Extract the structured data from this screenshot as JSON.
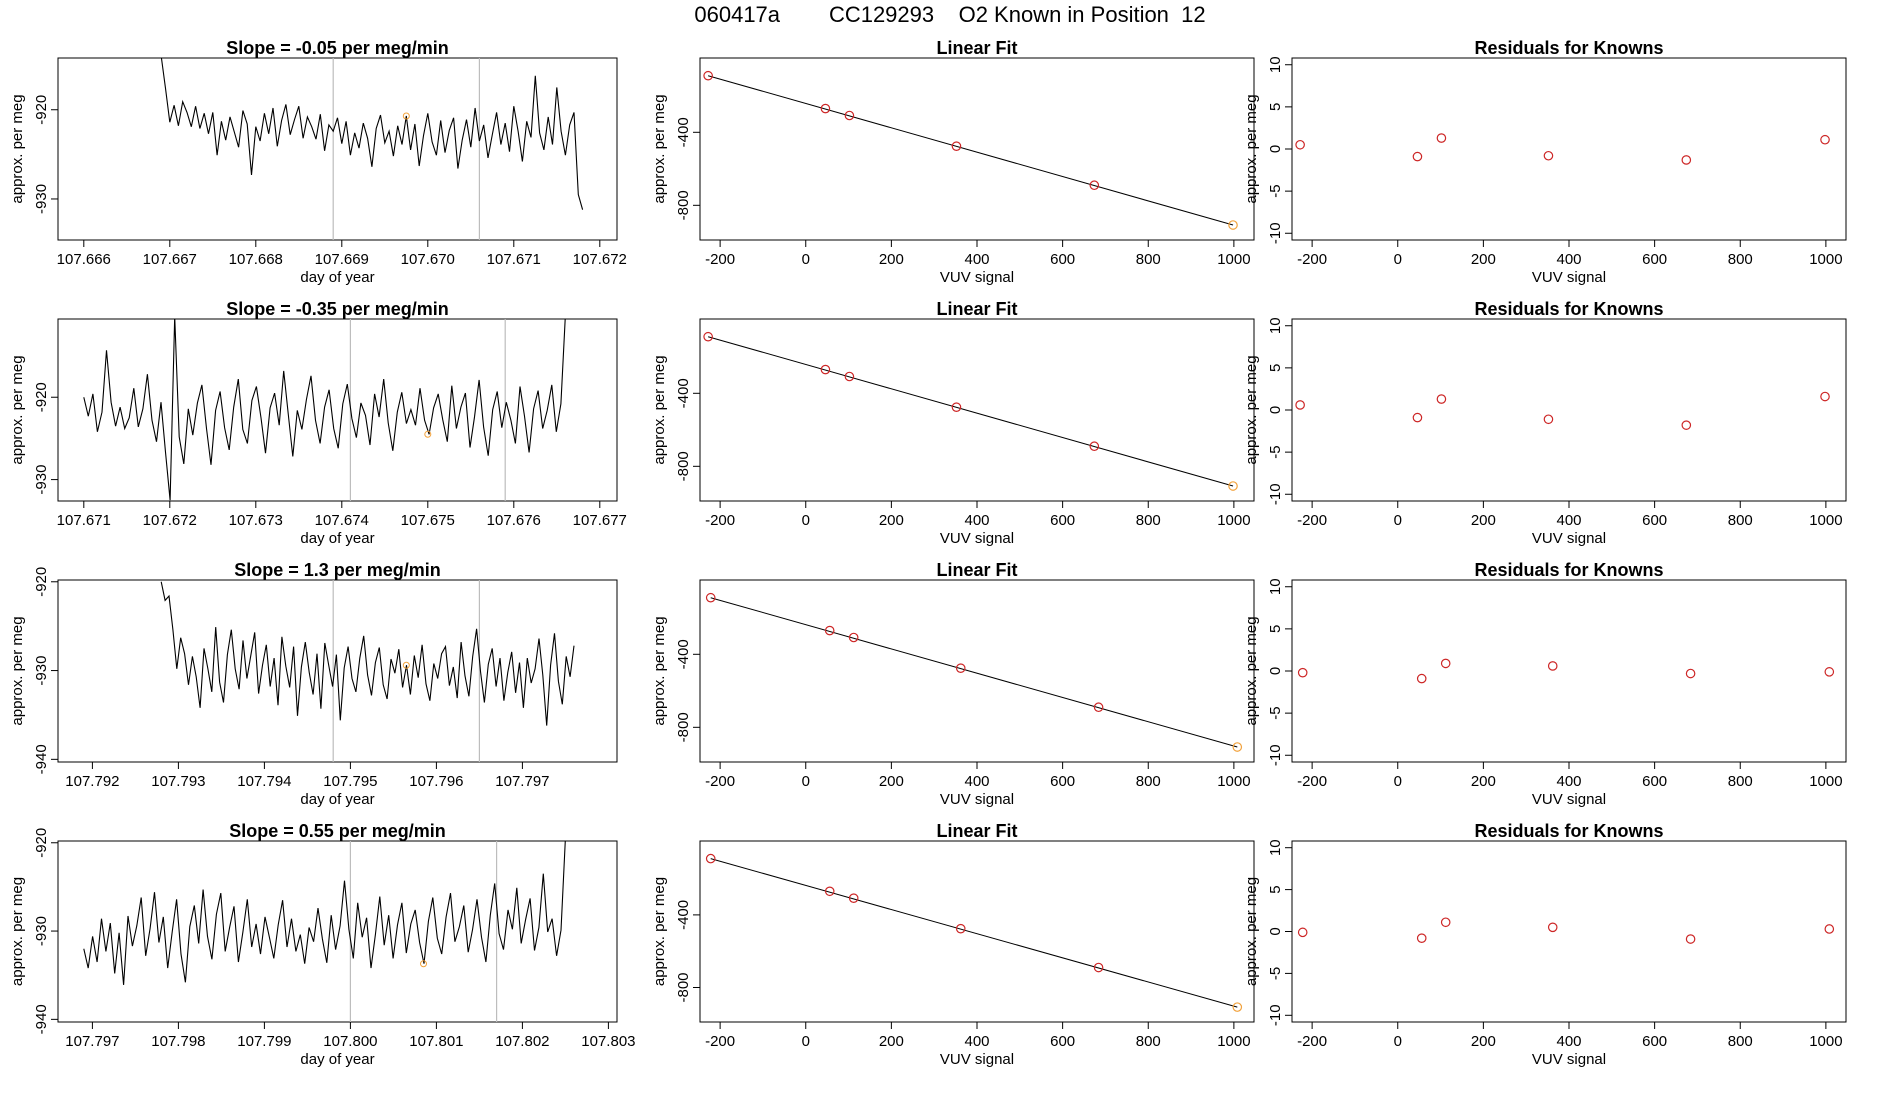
{
  "figure": {
    "title_parts": [
      "060417a",
      "CC129293",
      "O2 Known in Position  12"
    ],
    "colors": {
      "trace": "#000000",
      "guide": "#bdbdbd",
      "marker": "#cd2626",
      "highlight": "#f2a23c"
    }
  },
  "chart_data": [
    {
      "type": "line",
      "row": 1,
      "col": 1,
      "title": "Slope =  -0.05  per meg/min",
      "xlabel": "day of year",
      "ylabel": "approx. per meg",
      "xticks": [
        "107.666",
        "107.667",
        "107.668",
        "107.669",
        "107.670",
        "107.671",
        "107.672"
      ],
      "yticks": [
        "-930",
        "-920"
      ],
      "xlim": [
        107.6657,
        107.6722
      ],
      "ylim": [
        -934.6,
        -914.2
      ],
      "x_start": 107.6669,
      "x_end": 107.6718,
      "guides": [
        107.6689,
        107.6706
      ],
      "y": [
        -914,
        -917.6,
        -921.4,
        -919.5,
        -921.8,
        -919.1,
        -920.3,
        -921.9,
        -919.6,
        -922.1,
        -920.4,
        -922.7,
        -920.3,
        -925.1,
        -921.3,
        -923.4,
        -920.8,
        -922.5,
        -924.2,
        -920.1,
        -921.6,
        -927.3,
        -921.9,
        -923.5,
        -920.4,
        -922.7,
        -919.8,
        -924.1,
        -921.2,
        -919.4,
        -922.8,
        -921.1,
        -919.6,
        -923.2,
        -920.8,
        -921.9,
        -923.3,
        -920.5,
        -924.6,
        -921.7,
        -922.4,
        -920.9,
        -923.8,
        -921.3,
        -925.1,
        -922.6,
        -924.3,
        -921.5,
        -923.2,
        -926.4,
        -922.1,
        -920.6,
        -923.7,
        -922.4,
        -925.2,
        -921.8,
        -923.9,
        -920.7,
        -924.5,
        -921.6,
        -926.3,
        -922.9,
        -920.4,
        -923.6,
        -925.1,
        -921.2,
        -924.8,
        -922.3,
        -920.9,
        -926.6,
        -923.4,
        -921.1,
        -924.2,
        -919.8,
        -923.5,
        -921.7,
        -925.4,
        -922.8,
        -920.3,
        -923.9,
        -921.5,
        -924.7,
        -919.6,
        -922.4,
        -925.8,
        -921.3,
        -923.1,
        -916.2,
        -922.6,
        -924.5,
        -920.8,
        -923.9,
        -917.5,
        -922.4,
        -925.1,
        -921.7,
        -920.3,
        -929.5,
        -931.2
      ]
    },
    {
      "type": "line",
      "row": 1,
      "col": 2,
      "title": "Linear Fit",
      "xlabel": "VUV signal",
      "ylabel": "approx. per meg",
      "xticks": [
        "-200",
        "0",
        "200",
        "400",
        "600",
        "800",
        "1000"
      ],
      "yticks": [
        "-800",
        "-400"
      ],
      "xlim": [
        -247,
        1047
      ],
      "ylim": [
        -990,
        7
      ],
      "points": [
        [
          -228,
          -90
        ],
        [
          46,
          -270
        ],
        [
          102,
          -308
        ],
        [
          352,
          -476
        ],
        [
          674,
          -690
        ],
        [
          998,
          -908
        ]
      ],
      "fit_line": [
        [
          -228,
          -90
        ],
        [
          998,
          -908
        ]
      ]
    },
    {
      "type": "scatter",
      "row": 1,
      "col": 3,
      "title": "Residuals for Knowns",
      "xlabel": "VUV signal",
      "ylabel": "approx. per meg",
      "xticks": [
        "-200",
        "0",
        "200",
        "400",
        "600",
        "800",
        "1000"
      ],
      "yticks": [
        "-10",
        "-5",
        "0",
        "5",
        "10"
      ],
      "xlim": [
        -247,
        1047
      ],
      "ylim": [
        -10.8,
        10.8
      ],
      "points": [
        [
          -228,
          0.5
        ],
        [
          46,
          -0.9
        ],
        [
          102,
          1.3
        ],
        [
          352,
          -0.8
        ],
        [
          674,
          -1.3
        ],
        [
          998,
          1.1
        ]
      ]
    },
    {
      "type": "line",
      "row": 2,
      "col": 1,
      "title": "Slope =  -0.35  per meg/min",
      "xlabel": "day of year",
      "ylabel": "approx. per meg",
      "xticks": [
        "107.671",
        "107.672",
        "107.673",
        "107.674",
        "107.675",
        "107.676",
        "107.677"
      ],
      "yticks": [
        "-930",
        "-920"
      ],
      "xlim": [
        107.6707,
        107.6772
      ],
      "ylim": [
        -932.6,
        -910.5
      ],
      "x_start": 107.671,
      "x_end": 107.6766,
      "guides": [
        107.6741,
        107.6759
      ],
      "y": [
        -920,
        -922.3,
        -919.6,
        -924.2,
        -921.8,
        -914.3,
        -920.6,
        -923.5,
        -921.2,
        -923.8,
        -922.5,
        -918.9,
        -923.6,
        -921.4,
        -917.2,
        -922.8,
        -925.4,
        -920.6,
        -926.8,
        -932.5,
        -910.2,
        -924.8,
        -928.1,
        -921.4,
        -924.6,
        -920.7,
        -918.5,
        -923.8,
        -928.2,
        -921.6,
        -919.3,
        -923.7,
        -926.4,
        -921.2,
        -917.8,
        -923.9,
        -925.6,
        -920.4,
        -918.7,
        -922.5,
        -926.8,
        -921.3,
        -919.5,
        -923.4,
        -916.8,
        -922.1,
        -927.2,
        -921.6,
        -923.9,
        -920.3,
        -917.4,
        -922.8,
        -925.6,
        -921.2,
        -919.1,
        -923.8,
        -926.2,
        -920.8,
        -918.4,
        -922.6,
        -924.9,
        -920.7,
        -922.2,
        -925.8,
        -919.6,
        -922.4,
        -917.8,
        -923.1,
        -926.5,
        -921.8,
        -919.4,
        -923.2,
        -921.5,
        -923.4,
        -918.9,
        -922.8,
        -924.5,
        -921.3,
        -919.6,
        -922.7,
        -925.4,
        -918.6,
        -923.8,
        -921.2,
        -919.5,
        -926.1,
        -922.4,
        -917.9,
        -923.6,
        -927.1,
        -921.5,
        -919.3,
        -923.7,
        -920.6,
        -922.8,
        -925.6,
        -918.7,
        -922.3,
        -926.7,
        -921.4,
        -919.2,
        -923.8,
        -921.6,
        -918.5,
        -924.2,
        -920.8,
        -910
      ]
    },
    {
      "type": "line",
      "row": 2,
      "col": 2,
      "title": "Linear Fit",
      "xlabel": "VUV signal",
      "ylabel": "approx. per meg",
      "xticks": [
        "-200",
        "0",
        "200",
        "400",
        "600",
        "800",
        "1000"
      ],
      "yticks": [
        "-800",
        "-400"
      ],
      "xlim": [
        -247,
        1047
      ],
      "ylim": [
        -990,
        7
      ],
      "points": [
        [
          -228,
          -90
        ],
        [
          46,
          -270
        ],
        [
          102,
          -308
        ],
        [
          352,
          -476
        ],
        [
          674,
          -690
        ],
        [
          998,
          -908
        ]
      ],
      "fit_line": [
        [
          -228,
          -90
        ],
        [
          998,
          -908
        ]
      ]
    },
    {
      "type": "scatter",
      "row": 2,
      "col": 3,
      "title": "Residuals for Knowns",
      "xlabel": "VUV signal",
      "ylabel": "approx. per meg",
      "xticks": [
        "-200",
        "0",
        "200",
        "400",
        "600",
        "800",
        "1000"
      ],
      "yticks": [
        "-10",
        "-5",
        "0",
        "5",
        "10"
      ],
      "xlim": [
        -247,
        1047
      ],
      "ylim": [
        -10.8,
        10.8
      ],
      "points": [
        [
          -228,
          0.6
        ],
        [
          46,
          -0.9
        ],
        [
          102,
          1.3
        ],
        [
          352,
          -1.1
        ],
        [
          674,
          -1.8
        ],
        [
          998,
          1.6
        ]
      ]
    },
    {
      "type": "line",
      "row": 3,
      "col": 1,
      "title": "Slope =  1.3  per meg/min",
      "xlabel": "day of year",
      "ylabel": "approx. per meg",
      "xticks": [
        "107.792",
        "107.793",
        "107.794",
        "107.795",
        "107.796",
        "107.797"
      ],
      "yticks": [
        "-940",
        "-930",
        "-920"
      ],
      "xlim": [
        107.7916,
        107.7981
      ],
      "ylim": [
        -940.3,
        -919.8
      ],
      "x_start": 107.7928,
      "x_end": 107.7976,
      "guides": [
        107.7948,
        107.7965
      ],
      "y": [
        -920,
        -922.1,
        -921.6,
        -925.4,
        -929.8,
        -926.3,
        -928.1,
        -931.6,
        -928.4,
        -930.7,
        -934.2,
        -927.5,
        -929.8,
        -932.4,
        -925.1,
        -931.3,
        -933.6,
        -928.2,
        -925.4,
        -929.8,
        -932.1,
        -926.6,
        -930.9,
        -928.3,
        -925.7,
        -932.6,
        -929.4,
        -927.1,
        -931.8,
        -928.6,
        -933.9,
        -926.2,
        -929.5,
        -931.9,
        -927.3,
        -935.1,
        -929.6,
        -926.8,
        -930.2,
        -932.7,
        -928.1,
        -934.3,
        -926.9,
        -929.4,
        -931.8,
        -928.2,
        -935.6,
        -929.7,
        -927.3,
        -930.9,
        -932.4,
        -928.6,
        -926.1,
        -930.5,
        -932.8,
        -929.1,
        -927.4,
        -931.6,
        -933.2,
        -928.7,
        -930.3,
        -927.6,
        -931.9,
        -929.4,
        -932.7,
        -928.3,
        -930.8,
        -927.1,
        -931.5,
        -933.4,
        -929.2,
        -930.9,
        -928.1,
        -927.3,
        -931.7,
        -929.6,
        -933.1,
        -926.8,
        -930.6,
        -932.9,
        -928.4,
        -925.3,
        -930.1,
        -933.6,
        -929.3,
        -927.5,
        -931.8,
        -928.6,
        -933.4,
        -930.2,
        -927.9,
        -932.5,
        -929.1,
        -934.2,
        -928.6,
        -931.4,
        -929.8,
        -926.4,
        -930.5,
        -936.2,
        -929.4,
        -925.8,
        -931.2,
        -933.8,
        -928.4,
        -930.7,
        -927.2
      ]
    },
    {
      "type": "line",
      "row": 3,
      "col": 2,
      "title": "Linear Fit",
      "xlabel": "VUV signal",
      "ylabel": "approx. per meg",
      "xticks": [
        "-200",
        "0",
        "200",
        "400",
        "600",
        "800",
        "1000"
      ],
      "yticks": [
        "-800",
        "-400"
      ],
      "xlim": [
        -247,
        1047
      ],
      "ylim": [
        -990,
        7
      ],
      "points": [
        [
          -222,
          -90
        ],
        [
          56,
          -270
        ],
        [
          112,
          -308
        ],
        [
          362,
          -476
        ],
        [
          684,
          -690
        ],
        [
          1008,
          -908
        ]
      ],
      "fit_line": [
        [
          -222,
          -90
        ],
        [
          1008,
          -908
        ]
      ]
    },
    {
      "type": "scatter",
      "row": 3,
      "col": 3,
      "title": "Residuals for Knowns",
      "xlabel": "VUV signal",
      "ylabel": "approx. per meg",
      "xticks": [
        "-200",
        "0",
        "200",
        "400",
        "600",
        "800",
        "1000"
      ],
      "yticks": [
        "-10",
        "-5",
        "0",
        "5",
        "10"
      ],
      "xlim": [
        -247,
        1047
      ],
      "ylim": [
        -10.8,
        10.8
      ],
      "points": [
        [
          -222,
          -0.2
        ],
        [
          56,
          -0.9
        ],
        [
          112,
          0.9
        ],
        [
          362,
          0.6
        ],
        [
          684,
          -0.3
        ],
        [
          1008,
          -0.1
        ]
      ]
    },
    {
      "type": "line",
      "row": 4,
      "col": 1,
      "title": "Slope =  0.55  per meg/min",
      "xlabel": "day of year",
      "ylabel": "approx. per meg",
      "xticks": [
        "107.797",
        "107.798",
        "107.799",
        "107.800",
        "107.801",
        "107.802",
        "107.803"
      ],
      "yticks": [
        "-940",
        "-930",
        "-920"
      ],
      "xlim": [
        107.7966,
        107.8031
      ],
      "ylim": [
        -940.3,
        -919.8
      ],
      "x_start": 107.7969,
      "x_end": 107.8025,
      "guides": [
        107.8,
        107.8017
      ],
      "y": [
        -932,
        -934.2,
        -930.6,
        -933.5,
        -928.6,
        -932.3,
        -929.1,
        -934.8,
        -930.2,
        -936.1,
        -928.3,
        -931.7,
        -929.4,
        -926.2,
        -932.8,
        -929.7,
        -925.6,
        -931.3,
        -928.4,
        -934.2,
        -930.1,
        -926.4,
        -932.6,
        -935.8,
        -929.5,
        -927.1,
        -931.4,
        -925.3,
        -930.6,
        -933.2,
        -928.1,
        -925.7,
        -932.3,
        -929.6,
        -927.2,
        -933.5,
        -930.1,
        -926.4,
        -931.8,
        -929.2,
        -932.6,
        -928.4,
        -930.7,
        -933.1,
        -929.3,
        -926.5,
        -931.8,
        -928.6,
        -932.3,
        -930.4,
        -933.7,
        -929.6,
        -931.2,
        -927.4,
        -930.9,
        -933.6,
        -928.2,
        -932.1,
        -929.4,
        -924.3,
        -929.8,
        -933.1,
        -926.8,
        -930.7,
        -928.5,
        -934.2,
        -930.4,
        -926.1,
        -931.6,
        -928.2,
        -933.1,
        -929.3,
        -926.8,
        -932.5,
        -929.2,
        -927.6,
        -931.3,
        -933.7,
        -928.9,
        -926.2,
        -930.8,
        -932.6,
        -928.4,
        -925.7,
        -931.2,
        -929.5,
        -927.1,
        -932.4,
        -929.8,
        -926.4,
        -930.7,
        -933.5,
        -928.2,
        -924.6,
        -930.3,
        -932.1,
        -927.6,
        -929.8,
        -925.1,
        -931.4,
        -928.7,
        -926.3,
        -932.2,
        -929.6,
        -923.5,
        -930.1,
        -928.6,
        -932.8,
        -929.9,
        -919.5
      ]
    },
    {
      "type": "line",
      "row": 4,
      "col": 2,
      "title": "Linear Fit",
      "xlabel": "VUV signal",
      "ylabel": "approx. per meg",
      "xticks": [
        "-200",
        "0",
        "200",
        "400",
        "600",
        "800",
        "1000"
      ],
      "yticks": [
        "-800",
        "-400"
      ],
      "xlim": [
        -247,
        1047
      ],
      "ylim": [
        -990,
        7
      ],
      "points": [
        [
          -222,
          -90
        ],
        [
          56,
          -270
        ],
        [
          112,
          -308
        ],
        [
          362,
          -476
        ],
        [
          684,
          -690
        ],
        [
          1008,
          -908
        ]
      ],
      "fit_line": [
        [
          -222,
          -90
        ],
        [
          1008,
          -908
        ]
      ]
    },
    {
      "type": "scatter",
      "row": 4,
      "col": 3,
      "title": "Residuals for Knowns",
      "xlabel": "VUV signal",
      "ylabel": "approx. per meg",
      "xticks": [
        "-200",
        "0",
        "200",
        "400",
        "600",
        "800",
        "1000"
      ],
      "yticks": [
        "-10",
        "-5",
        "0",
        "5",
        "10"
      ],
      "xlim": [
        -247,
        1047
      ],
      "ylim": [
        -10.8,
        10.8
      ],
      "points": [
        [
          -222,
          -0.1
        ],
        [
          56,
          -0.8
        ],
        [
          112,
          1.1
        ],
        [
          362,
          0.5
        ],
        [
          684,
          -0.9
        ],
        [
          1008,
          0.3
        ]
      ]
    }
  ]
}
